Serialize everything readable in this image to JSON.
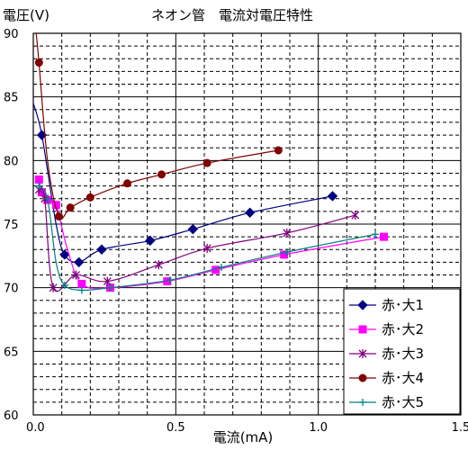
{
  "chart_data": {
    "type": "line",
    "title": "ネオン管　電流対電圧特性",
    "ylabel": "電圧(V)",
    "xlabel": "電流(mA)",
    "xlim": [
      0,
      1.5
    ],
    "ylim": [
      60,
      90
    ],
    "xticks": [
      "0.0",
      "0.5",
      "1.0",
      "1.5"
    ],
    "yticks": [
      "60",
      "65",
      "70",
      "75",
      "80",
      "85",
      "90"
    ],
    "grid": true,
    "legend_position": "bottom-right",
    "series": [
      {
        "name": "赤･大1",
        "color": "#000080",
        "marker": "diamond",
        "points": [
          [
            0.03,
            82.0
          ],
          [
            0.11,
            72.6
          ],
          [
            0.16,
            72.0
          ],
          [
            0.24,
            73.0
          ],
          [
            0.41,
            73.7
          ],
          [
            0.56,
            74.6
          ],
          [
            0.76,
            75.9
          ],
          [
            1.05,
            77.2
          ]
        ],
        "line": [
          [
            0.0,
            84.5
          ],
          [
            0.03,
            82.0
          ],
          [
            0.08,
            75.0
          ],
          [
            0.11,
            72.6
          ],
          [
            0.16,
            72.0
          ],
          [
            0.24,
            73.0
          ],
          [
            0.41,
            73.7
          ],
          [
            0.56,
            74.6
          ],
          [
            0.76,
            75.9
          ],
          [
            1.05,
            77.2
          ]
        ]
      },
      {
        "name": "赤･大2",
        "color": "#ff00ff",
        "marker": "square",
        "points": [
          [
            0.02,
            78.5
          ],
          [
            0.03,
            77.5
          ],
          [
            0.05,
            76.9
          ],
          [
            0.08,
            76.5
          ],
          [
            0.17,
            70.3
          ],
          [
            0.27,
            70.0
          ],
          [
            0.47,
            70.5
          ],
          [
            0.64,
            71.4
          ],
          [
            0.88,
            72.6
          ],
          [
            1.23,
            74.0
          ]
        ],
        "line": [
          [
            0.02,
            78.5
          ],
          [
            0.03,
            77.5
          ],
          [
            0.05,
            76.9
          ],
          [
            0.08,
            76.5
          ],
          [
            0.12,
            73.0
          ],
          [
            0.17,
            70.3
          ],
          [
            0.27,
            70.0
          ],
          [
            0.47,
            70.5
          ],
          [
            0.64,
            71.4
          ],
          [
            0.88,
            72.6
          ],
          [
            1.23,
            74.0
          ]
        ]
      },
      {
        "name": "赤･大3",
        "color": "#800080",
        "marker": "star",
        "points": [
          [
            0.02,
            77.7
          ],
          [
            0.04,
            77.0
          ],
          [
            0.07,
            70.0
          ],
          [
            0.15,
            71.0
          ],
          [
            0.26,
            70.5
          ],
          [
            0.44,
            71.8
          ],
          [
            0.61,
            73.1
          ],
          [
            0.89,
            74.3
          ],
          [
            1.13,
            75.7
          ]
        ],
        "line": [
          [
            0.02,
            77.7
          ],
          [
            0.04,
            77.0
          ],
          [
            0.07,
            70.0
          ],
          [
            0.15,
            71.0
          ],
          [
            0.26,
            70.5
          ],
          [
            0.44,
            71.8
          ],
          [
            0.61,
            73.1
          ],
          [
            0.89,
            74.3
          ],
          [
            1.13,
            75.7
          ]
        ]
      },
      {
        "name": "赤･大4",
        "color": "#800000",
        "marker": "circle",
        "points": [
          [
            0.02,
            87.7
          ],
          [
            0.09,
            75.6
          ],
          [
            0.13,
            76.3
          ],
          [
            0.2,
            77.1
          ],
          [
            0.33,
            78.2
          ],
          [
            0.45,
            78.9
          ],
          [
            0.61,
            79.8
          ],
          [
            0.86,
            80.8
          ]
        ],
        "line": [
          [
            0.01,
            90.0
          ],
          [
            0.02,
            87.7
          ],
          [
            0.05,
            80.0
          ],
          [
            0.09,
            75.6
          ],
          [
            0.13,
            76.3
          ],
          [
            0.2,
            77.1
          ],
          [
            0.33,
            78.2
          ],
          [
            0.45,
            78.9
          ],
          [
            0.61,
            79.8
          ],
          [
            0.86,
            80.8
          ]
        ]
      },
      {
        "name": "赤･大5",
        "color": "#008080",
        "marker": "plus",
        "points": [
          [
            0.02,
            78.0
          ],
          [
            0.05,
            77.0
          ],
          [
            0.11,
            70.2
          ],
          [
            0.17,
            69.8
          ],
          [
            0.27,
            70.0
          ],
          [
            0.48,
            70.6
          ],
          [
            0.66,
            71.6
          ],
          [
            0.89,
            72.8
          ],
          [
            1.2,
            74.2
          ]
        ],
        "line": [
          [
            0.02,
            78.0
          ],
          [
            0.05,
            77.0
          ],
          [
            0.08,
            72.0
          ],
          [
            0.11,
            70.2
          ],
          [
            0.17,
            69.8
          ],
          [
            0.27,
            70.0
          ],
          [
            0.48,
            70.6
          ],
          [
            0.66,
            71.6
          ],
          [
            0.89,
            72.8
          ],
          [
            1.2,
            74.2
          ]
        ]
      }
    ]
  }
}
